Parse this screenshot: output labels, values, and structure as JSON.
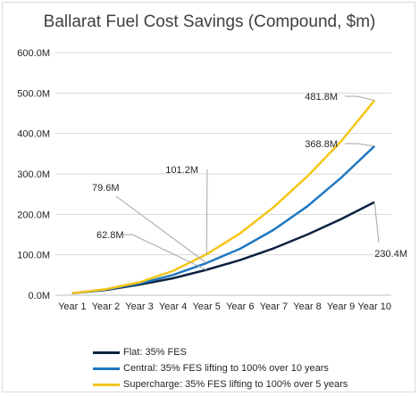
{
  "chart_data": {
    "type": "line",
    "title": "Ballarat Fuel Cost Savings (Compound, $m)",
    "xlabel": "",
    "ylabel": "",
    "categories": [
      "Year 1",
      "Year 2",
      "Year 3",
      "Year 4",
      "Year 5",
      "Year 6",
      "Year 7",
      "Year 8",
      "Year 9",
      "Year 10"
    ],
    "ylim": [
      0,
      600
    ],
    "yticks": [
      0,
      100,
      200,
      300,
      400,
      500,
      600
    ],
    "ytick_labels": [
      "0.0M",
      "100.0M",
      "200.0M",
      "300.0M",
      "400.0M",
      "500.0M",
      "600.0M"
    ],
    "grid": "horizontal",
    "legend_position": "bottom",
    "series": [
      {
        "name": "Flat: 35% FES",
        "color": "#0d2240",
        "values": [
          5,
          13,
          26,
          42,
          62.8,
          87,
          116,
          150,
          188,
          230.4
        ]
      },
      {
        "name": "Central: 35% FES lifting to 100% over 10 years",
        "color": "#1f78c1",
        "values": [
          5,
          14,
          29,
          50,
          79.6,
          115,
          162,
          220,
          290,
          368.8
        ]
      },
      {
        "name": "Supercharge: 35% FES lifting to 100% over 5 years",
        "color": "#f5c518",
        "values": [
          5,
          15,
          32,
          60,
          101.2,
          153,
          218,
          294,
          380,
          481.8
        ]
      }
    ],
    "annotations": [
      {
        "text": "481.8M",
        "series": 2,
        "point": 9
      },
      {
        "text": "368.8M",
        "series": 1,
        "point": 9
      },
      {
        "text": "230.4M",
        "series": 0,
        "point": 9
      },
      {
        "text": "101.2M",
        "series": 2,
        "point": 4
      },
      {
        "text": "79.6M",
        "series": 1,
        "point": 4
      },
      {
        "text": "62.8M",
        "series": 0,
        "point": 4
      }
    ]
  }
}
